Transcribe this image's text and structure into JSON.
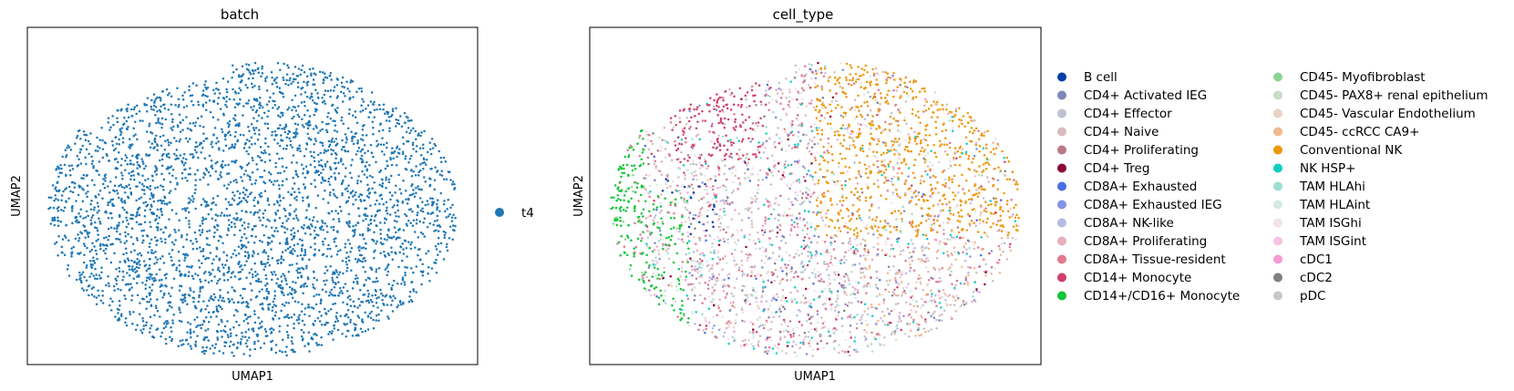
{
  "chart_data": [
    {
      "type": "scatter",
      "title": "batch",
      "xlabel": "UMAP1",
      "ylabel": "UMAP2",
      "grid": false,
      "legend_placement": "right",
      "series": [
        {
          "name": "t4",
          "color": "#1f77b4"
        }
      ]
    },
    {
      "type": "scatter",
      "title": "cell_type",
      "xlabel": "UMAP1",
      "ylabel": "UMAP2",
      "grid": false,
      "legend_placement": "right",
      "series": [
        {
          "name": "B cell",
          "color": "#023fa5"
        },
        {
          "name": "CD4+ Activated IEG",
          "color": "#7d87b9"
        },
        {
          "name": "CD4+ Effector",
          "color": "#bec1d4"
        },
        {
          "name": "CD4+ Naive",
          "color": "#d6bcc0"
        },
        {
          "name": "CD4+ Proliferating",
          "color": "#bb7784"
        },
        {
          "name": "CD4+ Treg",
          "color": "#8e063b"
        },
        {
          "name": "CD8A+ Exhausted",
          "color": "#4a6fe3"
        },
        {
          "name": "CD8A+ Exhausted IEG",
          "color": "#8595e1"
        },
        {
          "name": "CD8A+ NK-like",
          "color": "#b5bbe3"
        },
        {
          "name": "CD8A+ Proliferating",
          "color": "#e6afb9"
        },
        {
          "name": "CD8A+ Tissue-resident",
          "color": "#e07b91"
        },
        {
          "name": "CD14+ Monocyte",
          "color": "#d33f6a"
        },
        {
          "name": "CD14+/CD16+ Monocyte",
          "color": "#11c638"
        },
        {
          "name": "CD45- Myofibroblast",
          "color": "#8dd593"
        },
        {
          "name": "CD45- PAX8+ renal epithelium",
          "color": "#c6dec7"
        },
        {
          "name": "CD45- Vascular Endothelium",
          "color": "#ead3c6"
        },
        {
          "name": "CD45- ccRCC CA9+",
          "color": "#f0b98d"
        },
        {
          "name": "Conventional NK",
          "color": "#ef9708"
        },
        {
          "name": "NK HSP+",
          "color": "#0fcfc0"
        },
        {
          "name": "TAM HLAhi",
          "color": "#9cded6"
        },
        {
          "name": "TAM HLAint",
          "color": "#d5eae7"
        },
        {
          "name": "TAM ISGhi",
          "color": "#f3e1eb"
        },
        {
          "name": "TAM ISGint",
          "color": "#f6c4e1"
        },
        {
          "name": "cDC1",
          "color": "#f79cd4"
        },
        {
          "name": "cDC2",
          "color": "#7f7f7f"
        },
        {
          "name": "pDC",
          "color": "#c7c7c7"
        }
      ]
    }
  ]
}
